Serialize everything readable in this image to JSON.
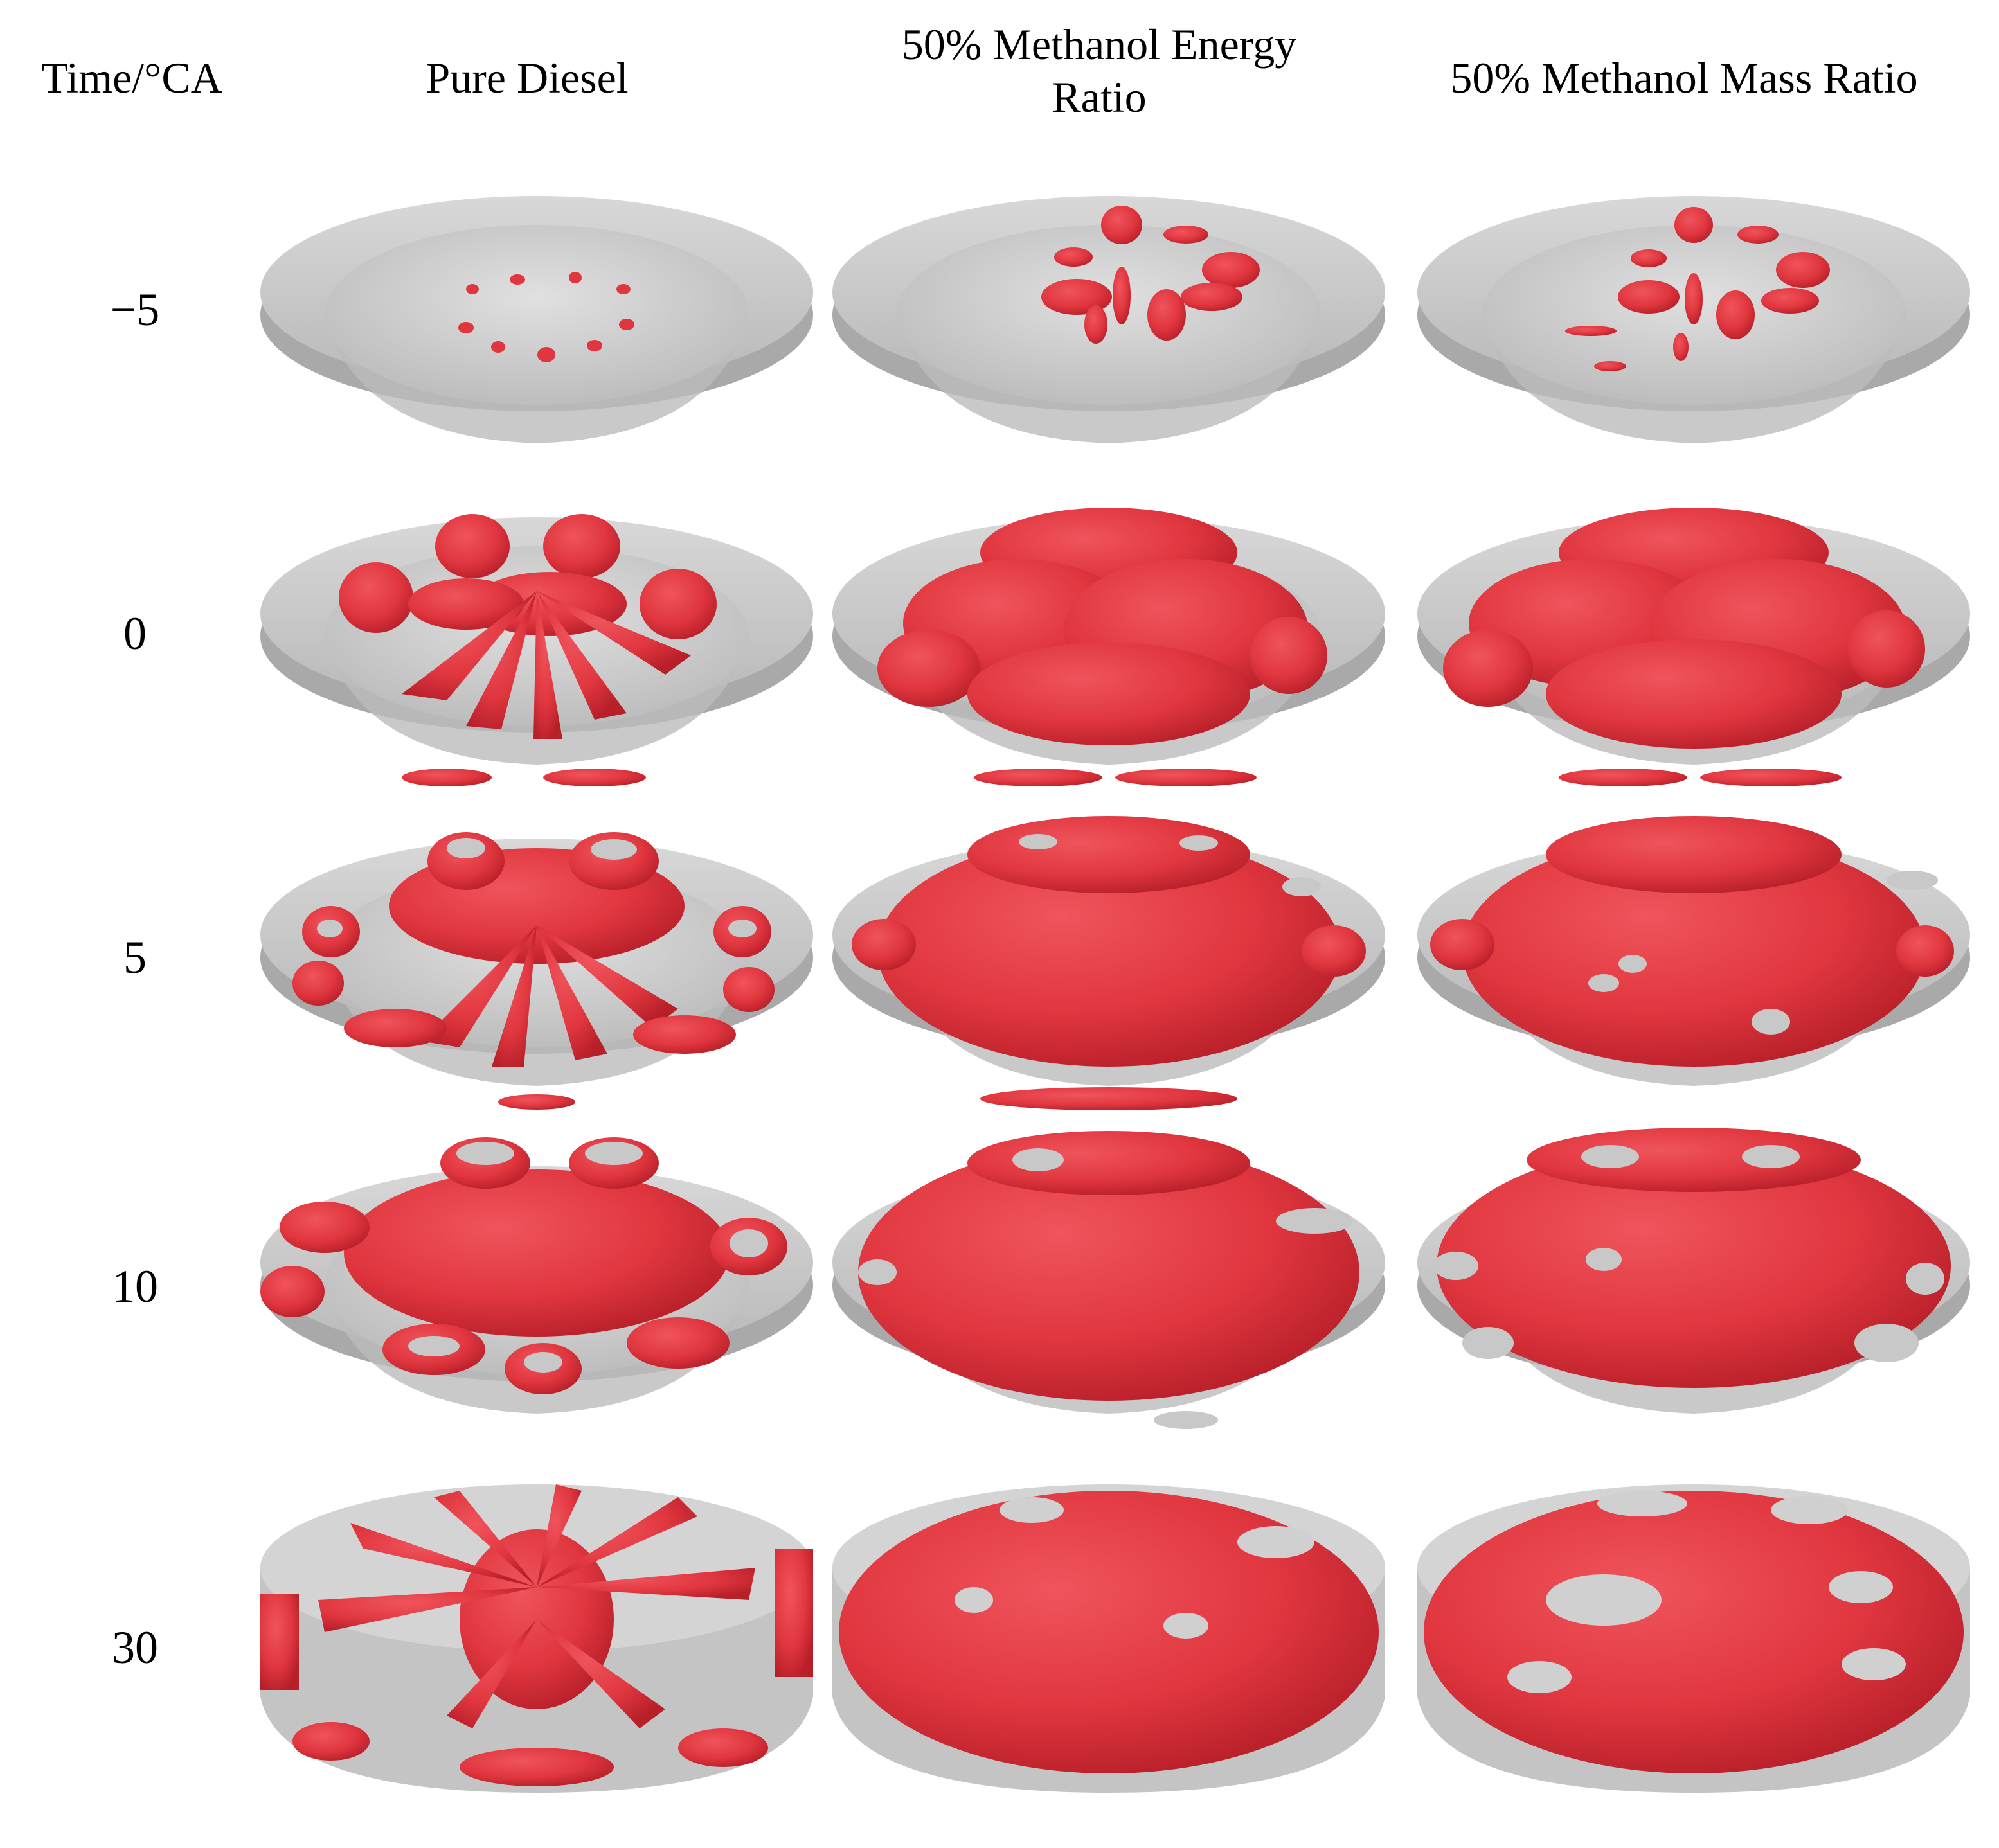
{
  "headers": {
    "time": "Time/°CA",
    "col1": "Pure Diesel",
    "col2_line1": "50% Methanol Energy",
    "col2_line2": "Ratio",
    "col3": "50% Methanol Mass Ratio"
  },
  "rows": [
    {
      "time": "−5"
    },
    {
      "time": "0"
    },
    {
      "time": "5"
    },
    {
      "time": "10"
    },
    {
      "time": "30"
    }
  ],
  "colors": {
    "bowl": "#c8c8c8",
    "bowl_dark": "#a9a9a9",
    "flame": "#e0363f",
    "flame_dark": "#b8202a"
  }
}
